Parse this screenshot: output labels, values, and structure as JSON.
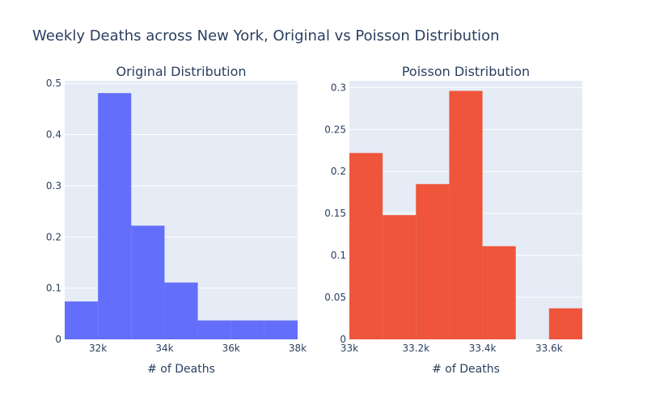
{
  "title": "Weekly Deaths across New York, Original vs Poisson Distribution",
  "colors": {
    "plot_bg": "#e5ecf6",
    "grid": "#ffffff",
    "text": "#2a3f5f"
  },
  "chart_data": [
    {
      "type": "bar",
      "subtitle": "Original Distribution",
      "xlabel": "# of Deaths",
      "ylabel": "",
      "color": "#636efa",
      "xlim": [
        31000,
        38000
      ],
      "ylim": [
        0,
        0.505
      ],
      "x_ticks": [
        {
          "value": 32000,
          "label": "32k"
        },
        {
          "value": 34000,
          "label": "34k"
        },
        {
          "value": 36000,
          "label": "36k"
        },
        {
          "value": 38000,
          "label": "38k"
        }
      ],
      "y_ticks": [
        {
          "value": 0,
          "label": "0"
        },
        {
          "value": 0.1,
          "label": "0.1"
        },
        {
          "value": 0.2,
          "label": "0.2"
        },
        {
          "value": 0.3,
          "label": "0.3"
        },
        {
          "value": 0.4,
          "label": "0.4"
        },
        {
          "value": 0.5,
          "label": "0.5"
        }
      ],
      "bins": [
        {
          "x0": 31000,
          "x1": 32000,
          "value": 0.074
        },
        {
          "x0": 32000,
          "x1": 33000,
          "value": 0.481
        },
        {
          "x0": 33000,
          "x1": 34000,
          "value": 0.222
        },
        {
          "x0": 34000,
          "x1": 35000,
          "value": 0.111
        },
        {
          "x0": 35000,
          "x1": 36000,
          "value": 0.037
        },
        {
          "x0": 36000,
          "x1": 37000,
          "value": 0.037
        },
        {
          "x0": 37000,
          "x1": 38000,
          "value": 0.037
        }
      ]
    },
    {
      "type": "bar",
      "subtitle": "Poisson Distribution",
      "xlabel": "# of Deaths",
      "ylabel": "",
      "color": "#ef553b",
      "xlim": [
        33000,
        33700
      ],
      "ylim": [
        0,
        0.308
      ],
      "x_ticks": [
        {
          "value": 33000,
          "label": "33k"
        },
        {
          "value": 33200,
          "label": "33.2k"
        },
        {
          "value": 33400,
          "label": "33.4k"
        },
        {
          "value": 33600,
          "label": "33.6k"
        }
      ],
      "y_ticks": [
        {
          "value": 0,
          "label": "0"
        },
        {
          "value": 0.05,
          "label": "0.05"
        },
        {
          "value": 0.1,
          "label": "0.1"
        },
        {
          "value": 0.15,
          "label": "0.15"
        },
        {
          "value": 0.2,
          "label": "0.2"
        },
        {
          "value": 0.25,
          "label": "0.25"
        },
        {
          "value": 0.3,
          "label": "0.3"
        }
      ],
      "bins": [
        {
          "x0": 33000,
          "x1": 33100,
          "value": 0.222
        },
        {
          "x0": 33100,
          "x1": 33200,
          "value": 0.148
        },
        {
          "x0": 33200,
          "x1": 33300,
          "value": 0.185
        },
        {
          "x0": 33300,
          "x1": 33400,
          "value": 0.296
        },
        {
          "x0": 33400,
          "x1": 33500,
          "value": 0.111
        },
        {
          "x0": 33500,
          "x1": 33600,
          "value": 0
        },
        {
          "x0": 33600,
          "x1": 33700,
          "value": 0.037
        }
      ]
    }
  ]
}
